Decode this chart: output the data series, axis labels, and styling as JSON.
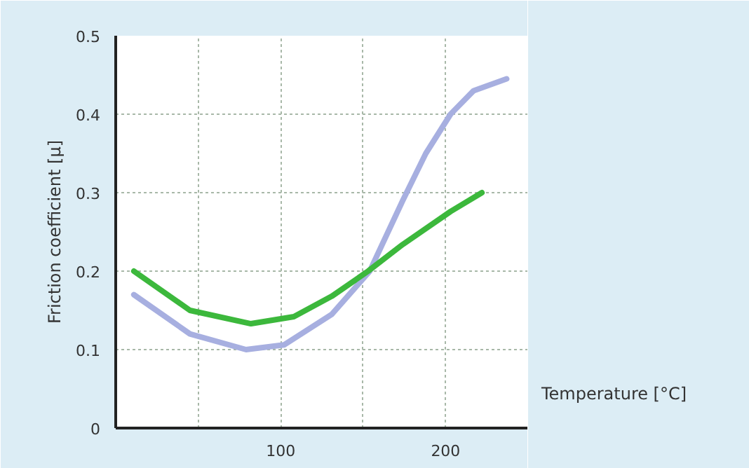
{
  "chart_data": {
    "type": "line",
    "xlabel": "Temperature [°C]",
    "ylabel": "Friction coefficient [µ]",
    "xlim": [
      0,
      250
    ],
    "ylim": [
      0,
      0.5
    ],
    "xticks": [
      {
        "value": 50,
        "label": null
      },
      100,
      {
        "value": 150,
        "label": null
      },
      200
    ],
    "yticks": [
      0,
      0.1,
      0.2,
      0.3,
      0.4,
      0.5
    ],
    "grid": true,
    "marker": "none",
    "line_style": "solid",
    "series": [
      {
        "color": "#a7afe0",
        "x": [
          11,
          45,
          79,
          102,
          131,
          154,
          174,
          188,
          203,
          217,
          237
        ],
        "values": [
          0.17,
          0.12,
          0.1,
          0.106,
          0.145,
          0.2,
          0.29,
          0.35,
          0.4,
          0.43,
          0.445
        ]
      },
      {
        "color": "#3cb83c",
        "x": [
          11,
          45,
          82,
          108,
          131,
          153,
          174,
          203,
          222
        ],
        "values": [
          0.2,
          0.15,
          0.133,
          0.142,
          0.168,
          0.2,
          0.234,
          0.276,
          0.3
        ]
      }
    ]
  }
}
